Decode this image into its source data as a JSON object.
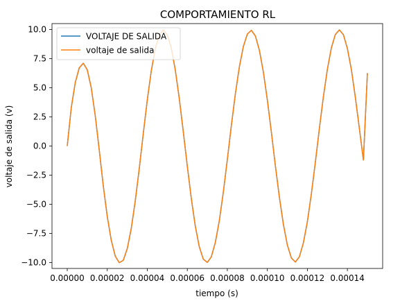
{
  "chart_data": {
    "type": "line",
    "title": "COMPORTAMIENTO RL",
    "xlabel": "tiempo (s)",
    "ylabel": "voltaje de salida (v)",
    "xlim": [
      0,
      0.00015
    ],
    "ylim": [
      -10.5,
      10.5
    ],
    "xticks": [
      0,
      2e-05,
      4e-05,
      6e-05,
      8e-05,
      0.0001,
      0.00012,
      0.00014
    ],
    "xtick_labels": [
      "0.00000",
      "0.00002",
      "0.00004",
      "0.00006",
      "0.00008",
      "0.00010",
      "0.00012",
      "0.00014"
    ],
    "yticks": [
      10,
      7.5,
      5,
      2.5,
      0,
      -2.5,
      -5,
      -7.5,
      -10
    ],
    "ytick_labels": [
      "10.0",
      "7.5",
      "5.0",
      "2.5",
      "0.0",
      "−2.5",
      "−5.0",
      "−7.5",
      "−10.0"
    ],
    "grid": false,
    "legend_position": "top-left",
    "series": [
      {
        "name": "VOLTAJE DE SALIDA",
        "color": "#1f77b4",
        "x": [
          0,
          2e-06,
          4e-06,
          6e-06,
          8e-06,
          1e-05,
          1.2e-05,
          1.4e-05,
          1.6e-05,
          1.8e-05,
          2e-05,
          2.2e-05,
          2.4e-05,
          2.6e-05,
          2.8e-05,
          3e-05,
          3.2e-05,
          3.4e-05,
          3.6e-05,
          3.8e-05,
          4e-05,
          4.2e-05,
          4.4e-05,
          4.6e-05,
          4.8e-05,
          5e-05,
          5.2e-05,
          5.4e-05,
          5.6e-05,
          5.8e-05,
          6e-05,
          6.2e-05,
          6.4e-05,
          6.6e-05,
          6.8e-05,
          7e-05,
          7.2e-05,
          7.4e-05,
          7.6e-05,
          7.8e-05,
          8e-05,
          8.2e-05,
          8.4e-05,
          8.6e-05,
          8.8e-05,
          9e-05,
          9.2e-05,
          9.4e-05,
          9.6e-05,
          9.8e-05,
          0.0001,
          0.000102,
          0.000104,
          0.000106,
          0.000108,
          0.00011,
          0.000112,
          0.000114,
          0.000116,
          0.000118,
          0.00012,
          0.000122,
          0.000124,
          0.000126,
          0.000128,
          0.00013,
          0.000132,
          0.000134,
          0.000136,
          0.000138,
          0.00014,
          0.000142,
          0.000144,
          0.000146,
          0.000148,
          0.00015
        ],
        "y": [
          0,
          3.27,
          5.44,
          6.7,
          7.1,
          6.54,
          5.0,
          2.6,
          -0.35,
          -3.4,
          -6.04,
          -8.08,
          -9.45,
          -10.0,
          -9.8,
          -8.8,
          -7.06,
          -4.7,
          -1.92,
          1.06,
          3.95,
          6.45,
          8.35,
          9.52,
          9.95,
          9.55,
          8.39,
          6.52,
          4.06,
          1.22,
          -1.72,
          -4.5,
          -6.88,
          -8.65,
          -9.7,
          -9.98,
          -9.5,
          -8.28,
          -6.4,
          -3.96,
          -1.17,
          1.74,
          4.45,
          6.77,
          8.53,
          9.6,
          9.92,
          9.45,
          8.23,
          6.36,
          3.95,
          1.2,
          -1.67,
          -4.37,
          -6.7,
          -8.49,
          -9.6,
          -9.95,
          -9.5,
          -8.31,
          -6.5,
          -4.1,
          -1.38,
          1.5,
          4.22,
          6.58,
          8.42,
          9.57,
          9.96,
          9.55,
          8.37,
          6.55,
          4.14,
          1.5,
          -1.2,
          6.25
        ]
      },
      {
        "name": "voltaje de salida",
        "color": "#ff7f0e"
      }
    ]
  }
}
